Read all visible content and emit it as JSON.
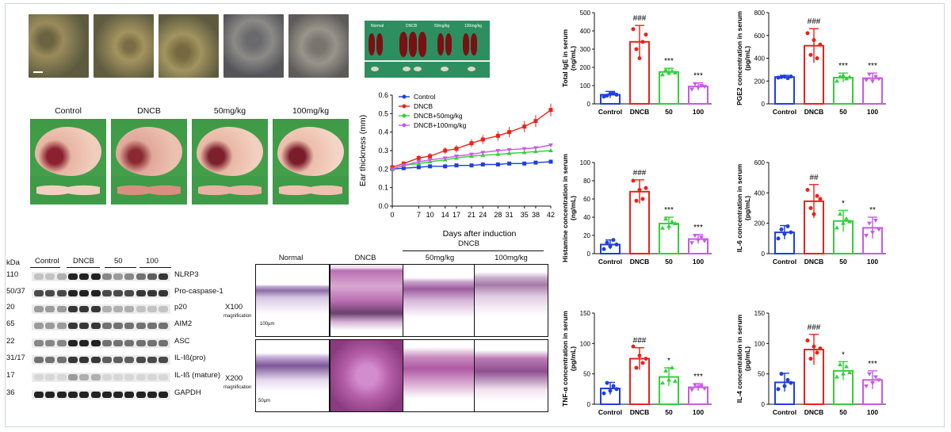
{
  "spleen": {
    "labels": [
      "Normal",
      "DNCB",
      "50mg/kg",
      "100mg/kg"
    ]
  },
  "ears": {
    "labels": [
      "Control",
      "DNCB",
      "50mg/kg",
      "100mg/kg"
    ]
  },
  "western_blot": {
    "kda_header": "kDa",
    "groups": [
      "Control",
      "DNCB",
      "50",
      "100"
    ],
    "rows": [
      {
        "kda": "110",
        "label": "NLRP3"
      },
      {
        "kda": "50/37",
        "label": "Pro-caspase-1"
      },
      {
        "kda": "20",
        "label": "p20"
      },
      {
        "kda": "65",
        "label": "AIM2"
      },
      {
        "kda": "22",
        "label": "ASC"
      },
      {
        "kda": "31/17",
        "label": "IL-Iß(pro)"
      },
      {
        "kda": "17",
        "label": "IL-Iß (mature)"
      },
      {
        "kda": "36",
        "label": "GAPDH"
      }
    ]
  },
  "histology": {
    "columns": [
      "Normal",
      "DNCB",
      "50mg/kg",
      "100mg/kg"
    ],
    "group": "DNCB",
    "rows": [
      "X100",
      "X200"
    ],
    "magnification_label": "magnification",
    "scale": [
      "100µm",
      "50µm"
    ]
  },
  "colors": {
    "control": "#1f3fdc",
    "dncb": "#e8231c",
    "d50": "#34d03a",
    "d100": "#c85ae6"
  },
  "chart_data": [
    {
      "type": "line",
      "xlabel": "Days after induction",
      "ylabel": "Ear thickness (mm)",
      "x": [
        0,
        3,
        7,
        10,
        14,
        17,
        21,
        24,
        28,
        31,
        35,
        38,
        42
      ],
      "xticks": [
        0,
        7,
        10,
        14,
        17,
        21,
        24,
        28,
        31,
        35,
        38,
        42
      ],
      "ylim": [
        0,
        0.6
      ],
      "yticks": [
        0,
        0.1,
        0.2,
        0.3,
        0.4,
        0.5,
        0.6
      ],
      "legend": "top-left",
      "series": [
        {
          "name": "Control",
          "values": [
            0.2,
            0.205,
            0.21,
            0.215,
            0.215,
            0.22,
            0.22,
            0.225,
            0.225,
            0.23,
            0.23,
            0.235,
            0.24
          ]
        },
        {
          "name": "DNCB",
          "values": [
            0.21,
            0.23,
            0.26,
            0.27,
            0.3,
            0.31,
            0.34,
            0.36,
            0.38,
            0.4,
            0.43,
            0.46,
            0.52
          ]
        },
        {
          "name": "DNCB+50mg/kg",
          "values": [
            0.2,
            0.22,
            0.23,
            0.24,
            0.25,
            0.26,
            0.27,
            0.275,
            0.28,
            0.285,
            0.29,
            0.295,
            0.3
          ]
        },
        {
          "name": "DNCB+100mg/kg",
          "values": [
            0.2,
            0.22,
            0.24,
            0.25,
            0.26,
            0.27,
            0.28,
            0.29,
            0.3,
            0.305,
            0.31,
            0.315,
            0.33
          ]
        }
      ]
    },
    {
      "type": "bar",
      "ylabel": "Total IgE in serum\n(ng/mL)",
      "categories": [
        "Control",
        "DNCB",
        "50",
        "100"
      ],
      "values": [
        50,
        340,
        175,
        95
      ],
      "errors": [
        18,
        90,
        20,
        20
      ],
      "points": [
        [
          40,
          45,
          55,
          60,
          50
        ],
        [
          410,
          300,
          250,
          340,
          380
        ],
        [
          160,
          185,
          170,
          180,
          170
        ],
        [
          80,
          110,
          90,
          100,
          95
        ]
      ],
      "significance": [
        "",
        "###",
        "***",
        "***"
      ],
      "ylim": [
        0,
        500
      ],
      "yticks": [
        0,
        100,
        200,
        300,
        400,
        500
      ]
    },
    {
      "type": "bar",
      "ylabel": "PGE2 concentration in serum\n(pg/mL)",
      "categories": [
        "Control",
        "DNCB",
        "50",
        "100"
      ],
      "values": [
        235,
        510,
        230,
        225
      ],
      "errors": [
        15,
        150,
        40,
        45
      ],
      "points": [
        [
          230,
          235,
          240,
          225,
          240
        ],
        [
          620,
          430,
          560,
          400,
          520
        ],
        [
          200,
          240,
          250,
          220,
          235
        ],
        [
          210,
          260,
          200,
          240,
          220
        ]
      ],
      "significance": [
        "",
        "###",
        "***",
        "***"
      ],
      "ylim": [
        0,
        800
      ],
      "yticks": [
        0,
        200,
        400,
        600,
        800
      ]
    },
    {
      "type": "bar",
      "ylabel": "Histamine concentration in serum\n(ng/mL)",
      "categories": [
        "Control",
        "DNCB",
        "50",
        "100"
      ],
      "values": [
        10,
        68,
        33,
        16
      ],
      "errors": [
        5,
        13,
        7,
        5
      ],
      "points": [
        [
          5,
          12,
          8,
          15,
          10
        ],
        [
          80,
          58,
          70,
          60,
          72
        ],
        [
          28,
          38,
          30,
          35,
          33
        ],
        [
          12,
          20,
          15,
          18,
          14
        ]
      ],
      "significance": [
        "",
        "###",
        "***",
        "***"
      ],
      "ylim": [
        0,
        100
      ],
      "yticks": [
        0,
        20,
        40,
        60,
        80,
        100
      ]
    },
    {
      "type": "bar",
      "ylabel": "IL-6 concentration in serum\n(pg/mL)",
      "categories": [
        "Control",
        "DNCB",
        "50",
        "100"
      ],
      "values": [
        140,
        345,
        215,
        170
      ],
      "errors": [
        45,
        110,
        70,
        70
      ],
      "points": [
        [
          100,
          160,
          130,
          180,
          140
        ],
        [
          420,
          300,
          260,
          380,
          360
        ],
        [
          170,
          260,
          200,
          230,
          210
        ],
        [
          120,
          200,
          140,
          220,
          160
        ]
      ],
      "significance": [
        "",
        "##",
        "*",
        "**"
      ],
      "ylim": [
        0,
        600
      ],
      "yticks": [
        0,
        200,
        400,
        600
      ]
    },
    {
      "type": "bar",
      "ylabel": "TNF-α concentration in serum\n(pg/mL)",
      "categories": [
        "Control",
        "DNCB",
        "50",
        "100"
      ],
      "values": [
        26,
        75,
        45,
        28
      ],
      "errors": [
        10,
        18,
        15,
        6
      ],
      "points": [
        [
          18,
          35,
          22,
          30,
          25
        ],
        [
          95,
          60,
          80,
          68,
          75
        ],
        [
          35,
          55,
          40,
          60,
          38
        ],
        [
          24,
          32,
          28,
          30,
          26
        ]
      ],
      "significance": [
        "",
        "###",
        "*",
        "***"
      ],
      "ylim": [
        0,
        150
      ],
      "yticks": [
        0,
        50,
        100,
        150
      ]
    },
    {
      "type": "bar",
      "ylabel": "IL-4 concentration in serum\n(pg/mL)",
      "categories": [
        "Control",
        "DNCB",
        "50",
        "100"
      ],
      "values": [
        36,
        90,
        55,
        40
      ],
      "errors": [
        15,
        25,
        15,
        15
      ],
      "points": [
        [
          25,
          50,
          30,
          40,
          35
        ],
        [
          105,
          75,
          95,
          85,
          92
        ],
        [
          45,
          65,
          50,
          62,
          52
        ],
        [
          30,
          50,
          35,
          45,
          40
        ]
      ],
      "significance": [
        "",
        "###",
        "*",
        "***"
      ],
      "ylim": [
        0,
        150
      ],
      "yticks": [
        0,
        50,
        100,
        150
      ]
    }
  ]
}
